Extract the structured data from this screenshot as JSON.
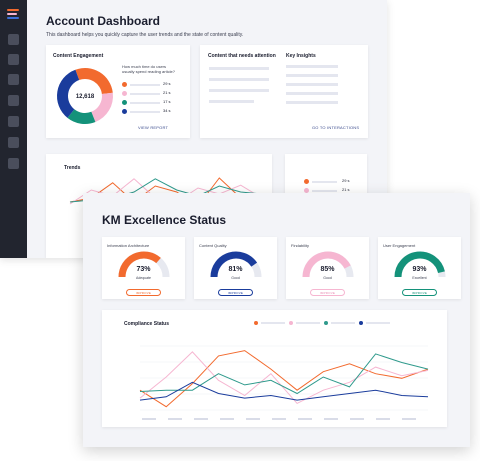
{
  "colors": {
    "orange": "#f26a2e",
    "pink": "#f6b6d1",
    "green": "#14927a",
    "navy": "#1a3c9c",
    "teal": "#2f9a8c",
    "sidebar": "#22252f"
  },
  "sidebar": {
    "icons": [
      "menu-icon",
      "dashboard-icon",
      "chart-icon",
      "document-icon",
      "users-icon",
      "search-icon",
      "settings-icon",
      "help-icon"
    ]
  },
  "back": {
    "title": "Account Dashboard",
    "subtitle": "This dashboard helps you quickly capture the user trends and the state of content quality.",
    "engagement": {
      "title": "Content Engagement",
      "center_value": "12,618",
      "question": "How much time do users",
      "question2": "usually spend reading article?",
      "legend": [
        {
          "color": "#f26a2e",
          "value": "29 s"
        },
        {
          "color": "#f6b6d1",
          "value": "21 s"
        },
        {
          "color": "#14927a",
          "value": "17 s"
        },
        {
          "color": "#1a3c9c",
          "value": "34 s"
        }
      ],
      "link": "VIEW REPORT"
    },
    "attention": {
      "title": "Content that needs attention"
    },
    "insights": {
      "title": "Key Insights",
      "link": "GO TO INTERACTIONS"
    },
    "trends": {
      "title": "Trends"
    },
    "mini_legend": [
      {
        "color": "#f26a2e",
        "value": "29 s"
      },
      {
        "color": "#f6b6d1",
        "value": "21 s"
      }
    ]
  },
  "front": {
    "title": "KM Excellence Status",
    "kpis": [
      {
        "label": "Information Architecture",
        "value": "73%",
        "fraction": 0.73,
        "status": "Adequate",
        "button": "IMPROVE",
        "color": "#f26a2e"
      },
      {
        "label": "Content Quality",
        "value": "81%",
        "fraction": 0.81,
        "status": "Good",
        "button": "IMPROVE",
        "color": "#1a3c9c"
      },
      {
        "label": "Findability",
        "value": "85%",
        "fraction": 0.85,
        "status": "Good",
        "button": "IMPROVE",
        "color": "#f6b6d1"
      },
      {
        "label": "User Engagement",
        "value": "93%",
        "fraction": 0.93,
        "status": "Excellent",
        "button": "IMPROVE",
        "color": "#14927a"
      }
    ],
    "compliance": {
      "title": "Compliance Status",
      "legend_colors": [
        "#f26a2e",
        "#f6b6d1",
        "#2f9a8c",
        "#1a3c9c"
      ]
    }
  },
  "chart_data": [
    {
      "type": "line",
      "title": "Compliance Status",
      "series": [
        {
          "color": "#f26a2e",
          "values": [
            0.3,
            0.05,
            0.4,
            0.82,
            0.9,
            0.62,
            0.3,
            0.58,
            0.7,
            0.55,
            0.48,
            0.62
          ]
        },
        {
          "color": "#f6b6d1",
          "values": [
            0.18,
            0.5,
            0.88,
            0.45,
            0.22,
            0.55,
            0.1,
            0.3,
            0.42,
            0.65,
            0.52,
            0.6
          ]
        },
        {
          "color": "#2f9a8c",
          "values": [
            0.28,
            0.3,
            0.3,
            0.55,
            0.38,
            0.45,
            0.25,
            0.5,
            0.35,
            0.85,
            0.72,
            0.62
          ]
        },
        {
          "color": "#1a3c9c",
          "values": [
            0.15,
            0.2,
            0.42,
            0.25,
            0.18,
            0.22,
            0.15,
            0.2,
            0.25,
            0.3,
            0.22,
            0.2
          ]
        }
      ]
    },
    {
      "type": "line",
      "title": "Trends",
      "series": [
        {
          "color": "#f26a2e",
          "values": [
            0.3,
            0.4,
            0.78,
            0.3,
            0.7,
            0.55,
            0.2,
            0.9,
            0.4,
            0.3
          ]
        },
        {
          "color": "#f6b6d1",
          "values": [
            0.25,
            0.6,
            0.45,
            0.88,
            0.4,
            0.3,
            0.65,
            0.5,
            0.72,
            0.4
          ]
        },
        {
          "color": "#2f9a8c",
          "values": [
            0.3,
            0.35,
            0.4,
            0.55,
            0.88,
            0.6,
            0.45,
            0.7,
            0.55,
            0.5
          ]
        }
      ]
    }
  ]
}
